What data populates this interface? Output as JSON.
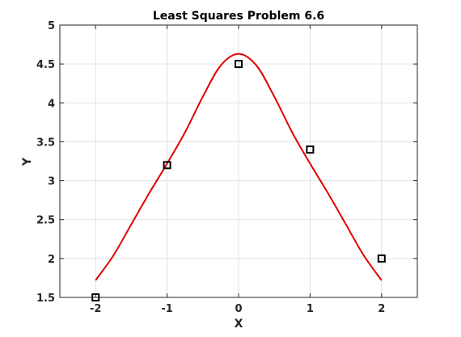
{
  "chart_data": {
    "type": "line",
    "title": "Least Squares Problem 6.6",
    "xlabel": "X",
    "ylabel": "Y",
    "xlim": [
      -2.5,
      2.5
    ],
    "ylim": [
      1.5,
      5
    ],
    "x_ticks": [
      -2,
      -1,
      0,
      1,
      2
    ],
    "x_tick_labels": [
      "-2",
      "-1",
      "0",
      "1",
      "2"
    ],
    "y_ticks": [
      1.5,
      2,
      2.5,
      3,
      3.5,
      4,
      4.5,
      5
    ],
    "y_tick_labels": [
      "1.5",
      "2",
      "2.5",
      "3",
      "3.5",
      "4",
      "4.5",
      "5"
    ],
    "grid": true,
    "legend": "none",
    "series": [
      {
        "kind": "markers",
        "marker": "square",
        "color": "#000000",
        "x": [
          -2,
          -1,
          0,
          1,
          2
        ],
        "y": [
          1.5,
          3.2,
          4.5,
          3.4,
          2.0
        ]
      },
      {
        "kind": "line",
        "color": "#e00000",
        "x": [
          -2,
          -1.75,
          -1.5,
          -1.25,
          -1,
          -0.75,
          -0.5,
          -0.25,
          0,
          0.25,
          0.5,
          0.75,
          1,
          1.25,
          1.5,
          1.75,
          2
        ],
        "y": [
          1.72,
          2.04,
          2.44,
          2.84,
          3.22,
          3.62,
          4.08,
          4.48,
          4.63,
          4.48,
          4.08,
          3.62,
          3.22,
          2.84,
          2.44,
          2.04,
          1.72
        ]
      }
    ]
  }
}
